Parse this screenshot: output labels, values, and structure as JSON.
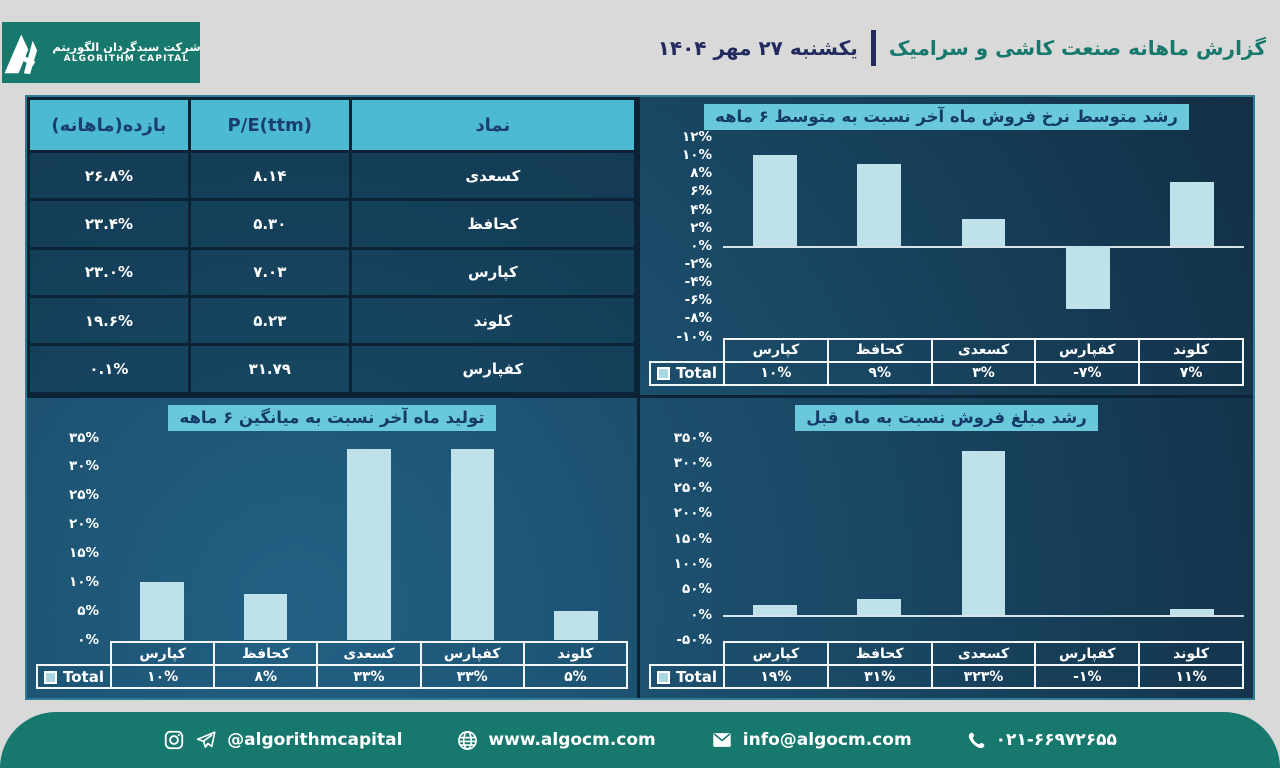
{
  "header": {
    "logo_fa": "شرکت سبدگردان الگوریتم",
    "logo_en": "ALGORITHM CAPITAL",
    "title": "گزارش ماهانه صنعت کاشی و سرامیک",
    "date": "یکشنبه ۲۷ مهر ۱۴۰۴"
  },
  "colors": {
    "brand_teal": "#17786d",
    "panel_dark": "#122f45",
    "panel_light": "#226083",
    "table_header_bg": "#4cbad3",
    "table_header_text": "#1c3e6c",
    "title_badge_bg": "#69c9db",
    "title_badge_text": "#153a68",
    "bar_fill": "#bfe2ea",
    "cell_border_dark": "#0b2335",
    "date_navy": "#232a5e"
  },
  "chart_data": [
    {
      "type": "table",
      "columns": [
        "نماد",
        "P/E(ttm)",
        "بازده(ماهانه)"
      ],
      "rows": [
        [
          "کسعدی",
          "۸.۱۴",
          "۲۶.۸%"
        ],
        [
          "کحافظ",
          "۵.۳۰",
          "۲۳.۴%"
        ],
        [
          "کپارس",
          "۷.۰۳",
          "۲۳.۰%"
        ],
        [
          "کلوند",
          "۵.۲۳",
          "۱۹.۶%"
        ],
        [
          "کفپارس",
          "۳۱.۷۹",
          "۰.۱%"
        ]
      ],
      "rows_numeric": [
        {
          "symbol": "کسعدی",
          "pe_ttm": 8.14,
          "monthly_return_pct": 26.8
        },
        {
          "symbol": "کحافظ",
          "pe_ttm": 5.3,
          "monthly_return_pct": 23.4
        },
        {
          "symbol": "کپارس",
          "pe_ttm": 7.03,
          "monthly_return_pct": 23.0
        },
        {
          "symbol": "کلوند",
          "pe_ttm": 5.23,
          "monthly_return_pct": 19.6
        },
        {
          "symbol": "کفپارس",
          "pe_ttm": 31.79,
          "monthly_return_pct": 0.1
        }
      ]
    },
    {
      "type": "bar",
      "title": "رشد متوسط نرخ فروش ماه آخر نسبت به متوسط ۶ ماهه",
      "categories": [
        "کپارس",
        "کحافظ",
        "کسعدی",
        "کفپارس",
        "کلوند"
      ],
      "series": [
        {
          "name": "Total",
          "values": [
            10,
            9,
            3,
            -7,
            7
          ]
        }
      ],
      "value_labels": [
        "۱۰%",
        "۹%",
        "۳%",
        "-۷%",
        "۷%"
      ],
      "ylim": [
        -10,
        12
      ],
      "yticks": [
        12,
        10,
        8,
        6,
        4,
        2,
        0,
        -2,
        -4,
        -6,
        -8,
        -10
      ],
      "ytick_labels": [
        "۱۲%",
        "۱۰%",
        "۸%",
        "۶%",
        "۴%",
        "۲%",
        "۰%",
        "-۲%",
        "-۴%",
        "-۶%",
        "-۸%",
        "-۱۰%"
      ],
      "grid": false,
      "legend_position": "bottom-table"
    },
    {
      "type": "bar",
      "title": "تولید ماه آخر نسبت به میانگین ۶ ماهه",
      "categories": [
        "کپارس",
        "کحافظ",
        "کسعدی",
        "کفپارس",
        "کلوند"
      ],
      "series": [
        {
          "name": "Total",
          "values": [
            10,
            8,
            33,
            33,
            5
          ]
        }
      ],
      "value_labels": [
        "۱۰%",
        "۸%",
        "۳۳%",
        "۳۳%",
        "۵%"
      ],
      "ylim": [
        0,
        35
      ],
      "yticks": [
        35,
        30,
        25,
        20,
        15,
        10,
        5,
        0
      ],
      "ytick_labels": [
        "۳۵%",
        "۳۰%",
        "۲۵%",
        "۲۰%",
        "۱۵%",
        "۱۰%",
        "۵%",
        "۰%"
      ],
      "grid": false,
      "legend_position": "bottom-table"
    },
    {
      "type": "bar",
      "title": "رشد مبلغ فروش نسبت به ماه قبل",
      "categories": [
        "کپارس",
        "کحافظ",
        "کسعدی",
        "کفپارس",
        "کلوند"
      ],
      "series": [
        {
          "name": "Total",
          "values": [
            19,
            31,
            323,
            -1,
            11
          ]
        }
      ],
      "value_labels": [
        "۱۹%",
        "۳۱%",
        "۳۲۳%",
        "-۱%",
        "۱۱%"
      ],
      "ylim": [
        -50,
        350
      ],
      "yticks": [
        350,
        300,
        250,
        200,
        150,
        100,
        50,
        0,
        -50
      ],
      "ytick_labels": [
        "۳۵۰%",
        "۳۰۰%",
        "۲۵۰%",
        "۲۰۰%",
        "۱۵۰%",
        "۱۰۰%",
        "۵۰%",
        "۰%",
        "-۵۰%"
      ],
      "grid": false,
      "legend_position": "bottom-table"
    }
  ],
  "footer": {
    "social_handle": "@algorithmcapital",
    "website": "www.algocm.com",
    "email": "info@algocm.com",
    "phone": "۰۲۱-۶۶۹۷۲۶۵۵"
  }
}
